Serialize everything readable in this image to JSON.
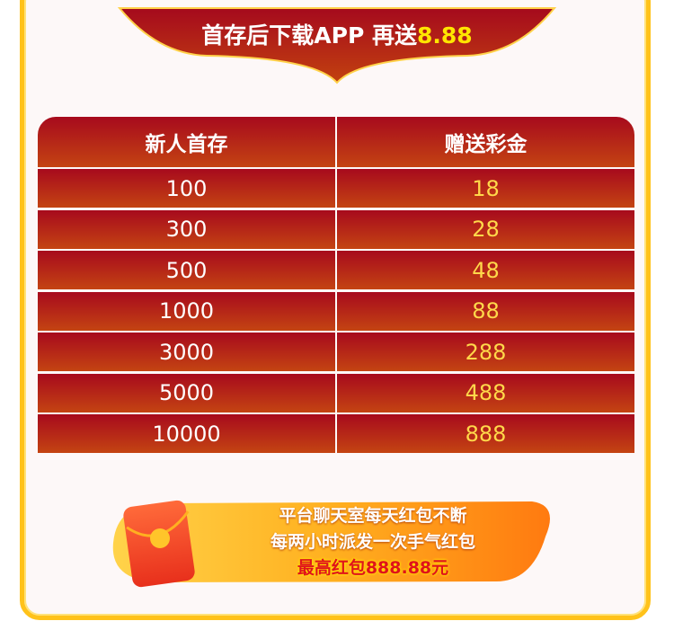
{
  "header": {
    "title_main": "首存后下载APP 再送",
    "title_highlight": "8.88"
  },
  "table": {
    "columns": [
      "新人首存",
      "赠送彩金"
    ],
    "rows": [
      [
        "100",
        "18"
      ],
      [
        "300",
        "28"
      ],
      [
        "500",
        "48"
      ],
      [
        "1000",
        "88"
      ],
      [
        "3000",
        "288"
      ],
      [
        "5000",
        "488"
      ],
      [
        "10000",
        "888"
      ]
    ]
  },
  "promo": {
    "line1": "平台聊天室每天红包不断",
    "line2": "每两小时派发一次手气红包",
    "line3": "最高红包888.88元",
    "icon": "red-envelope-icon"
  },
  "colors": {
    "frame": "#ffc21a",
    "table_red": "#a70a1d",
    "bonus_gold": "#ffd84a",
    "highlight": "#ffe600"
  }
}
